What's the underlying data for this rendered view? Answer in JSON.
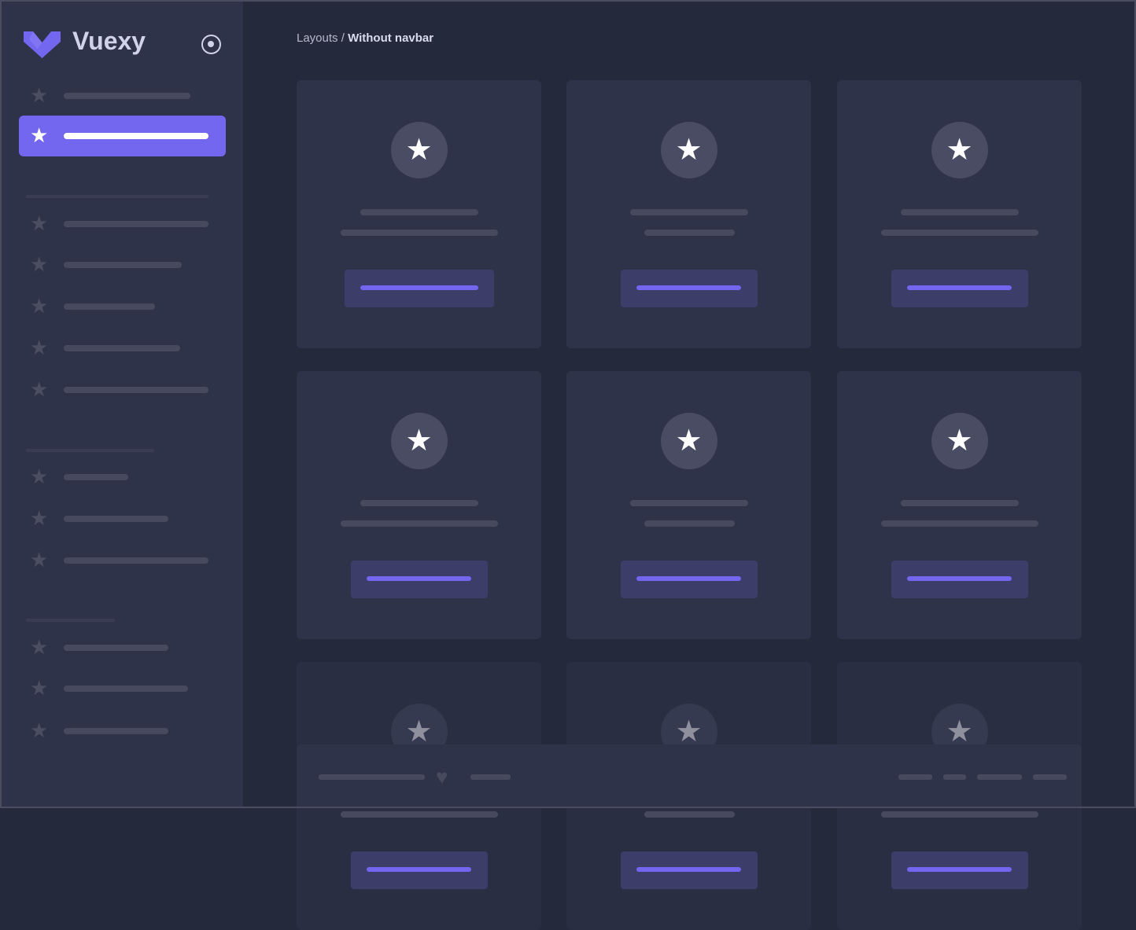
{
  "app": {
    "name": "Vuexy",
    "accent": "#7367f0"
  },
  "breadcrumb": {
    "parent": "Layouts",
    "separator": " / ",
    "current": "Without navbar"
  },
  "icons": {
    "logo": "vuexy-logo",
    "menu_toggle": "radio-circle-icon",
    "nav": "star-icon",
    "card": "star-icon",
    "footer": "heart-icon"
  },
  "sidebar": {
    "active_index": 1,
    "item_count": 13
  },
  "cards": {
    "count": 9
  }
}
